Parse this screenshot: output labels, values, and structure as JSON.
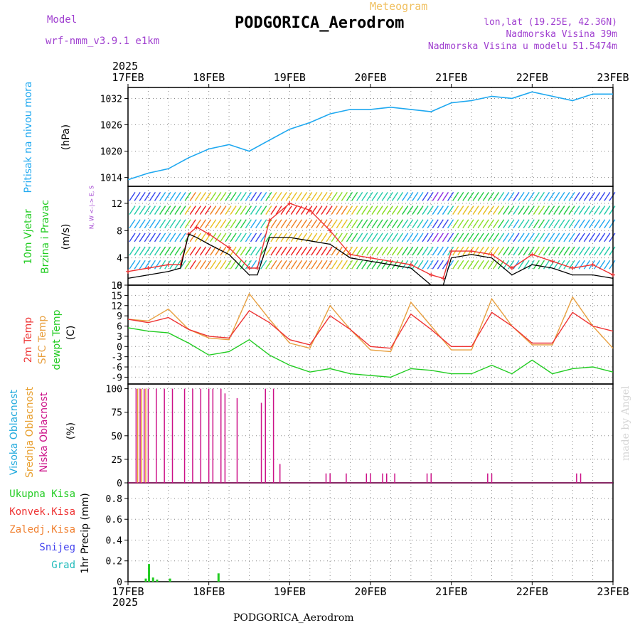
{
  "header": {
    "meteogram_label": "Meteogram",
    "title": "PODGORICA_Aerodrom",
    "model_label": "Model",
    "model_name": "wrf-nmm_v3.9.1 e1km",
    "coords": "lon,lat (19.25E, 42.36N)",
    "altitude": "Nadmorska Visina 39m",
    "model_altitude": "Nadmorska Visina u modelu 51.5474m",
    "year": "2025",
    "footer_station": "PODGORICA_Aerodrom",
    "watermark": "made by Angel"
  },
  "time_axis": {
    "dates": [
      "17FEB",
      "18FEB",
      "19FEB",
      "20FEB",
      "21FEB",
      "22FEB",
      "23FEB"
    ]
  },
  "colors": {
    "pressure": "#1ea8f0",
    "t2m": "#ee3333",
    "tsfc": "#e8a040",
    "dewpoint": "#22cc22",
    "wind_speed": "#000000",
    "gust": "#ee3333",
    "cloud_high": "#22aadd",
    "cloud_mid": "#e8a030",
    "cloud_low": "#cc1188",
    "precip_total": "#22cc22",
    "grid": "#888888",
    "label_purple": "#a040d0",
    "meteogram_label": "#f0c060"
  },
  "chart_data": [
    {
      "type": "line",
      "panel": "pressure",
      "ylabel_side": "Pritisak na nivou mora",
      "ylabel": "(hPa)",
      "yticks": [
        1014,
        1020,
        1026,
        1032
      ],
      "ylim": [
        1012,
        1034.5
      ],
      "x_days": [
        0,
        0.25,
        0.5,
        0.75,
        1,
        1.25,
        1.5,
        1.75,
        2,
        2.25,
        2.5,
        2.75,
        3,
        3.25,
        3.5,
        3.75,
        4,
        4.25,
        4.5,
        4.75,
        5,
        5.25,
        5.5,
        5.75,
        6
      ],
      "values": [
        1013.5,
        1015,
        1016,
        1018.5,
        1020.5,
        1021.5,
        1020,
        1022.5,
        1025,
        1026.5,
        1028.5,
        1029.5,
        1029.5,
        1030,
        1029.5,
        1029,
        1031,
        1031.5,
        1032.5,
        1032,
        1033.5,
        1032.5,
        1031.5,
        1033,
        1033
      ],
      "grid": true
    },
    {
      "type": "line",
      "panel": "wind",
      "ylabel_side": [
        "10m Vjetar",
        "Brzina i Pravac"
      ],
      "ylabel": "(m/s)",
      "compass_legend": "N, W <-|-> E, S",
      "yticks": [
        0,
        4,
        8,
        12
      ],
      "ylim": [
        0,
        14.5
      ],
      "x_days": [
        0,
        0.25,
        0.5,
        0.65,
        0.75,
        0.85,
        1,
        1.25,
        1.5,
        1.6,
        1.75,
        2,
        2.25,
        2.5,
        2.75,
        3,
        3.25,
        3.5,
        3.75,
        3.9,
        4,
        4.25,
        4.5,
        4.75,
        5,
        5.25,
        5.5,
        5.75,
        6
      ],
      "series": [
        {
          "name": "speed",
          "values": [
            1,
            1.5,
            2,
            2.5,
            7.5,
            7,
            6,
            4.5,
            1.5,
            1.5,
            7,
            7,
            6.5,
            6,
            4,
            3.5,
            3,
            2.5,
            0,
            0,
            4,
            4.5,
            4,
            1.5,
            3,
            2.5,
            1.5,
            1.5,
            1
          ]
        },
        {
          "name": "gust",
          "values": [
            2,
            2.5,
            3,
            3,
            7.5,
            8.5,
            7.5,
            5.5,
            2.5,
            2.5,
            9.5,
            12,
            11,
            8,
            4.5,
            4,
            3.5,
            3,
            1.5,
            1,
            5,
            5,
            4.5,
            2.5,
            4.5,
            3.5,
            2.5,
            3,
            1.5
          ]
        }
      ],
      "grid": true
    },
    {
      "type": "line",
      "panel": "temperature",
      "ylabel_side": [
        "2m Temp",
        "SFC Temp",
        "dewpt Temp"
      ],
      "ylabel": "(C)",
      "yticks": [
        -9,
        -6,
        -3,
        0,
        3,
        6,
        9,
        12,
        15,
        18
      ],
      "ylim": [
        -11,
        18
      ],
      "x_days": [
        0,
        0.25,
        0.5,
        0.75,
        1,
        1.25,
        1.5,
        1.75,
        2,
        2.25,
        2.5,
        2.75,
        3,
        3.25,
        3.5,
        3.75,
        4,
        4.25,
        4.5,
        4.75,
        5,
        5.25,
        5.5,
        5.75,
        6
      ],
      "series": [
        {
          "name": "2m Temp",
          "values": [
            8,
            7,
            8.5,
            5,
            3,
            2.5,
            10.5,
            7,
            2,
            0.5,
            9,
            5,
            0,
            -0.5,
            9.5,
            5,
            0,
            0,
            10,
            6,
            1,
            1,
            10,
            6,
            4.5
          ]
        },
        {
          "name": "SFC Temp",
          "values": [
            8,
            7.5,
            11,
            5,
            2.5,
            2,
            15.5,
            8,
            1,
            -0.5,
            12,
            5,
            -1,
            -1.5,
            13,
            6,
            -1,
            -1,
            14,
            6,
            0.5,
            0.5,
            14.5,
            6,
            -0.5
          ]
        },
        {
          "name": "dewpt Temp",
          "values": [
            5.5,
            4.5,
            4,
            1,
            -2.5,
            -1.5,
            2,
            -2.5,
            -5.5,
            -7.5,
            -6.5,
            -8,
            -8.5,
            -9,
            -6.5,
            -7,
            -8,
            -8,
            -5.5,
            -8,
            -4,
            -8,
            -6.5,
            -6,
            -7.5
          ]
        }
      ],
      "grid": true
    },
    {
      "type": "bar",
      "panel": "cloud",
      "ylabel_side": [
        "Visoka Oblacnost",
        "Srednja Oblacnost",
        "Niska Oblacnost"
      ],
      "ylabel": "(%)",
      "yticks": [
        0,
        25,
        50,
        75,
        100
      ],
      "ylim": [
        0,
        105
      ],
      "series": [
        {
          "name": "Niska Oblacnost",
          "x_days": [
            0.1,
            0.15,
            0.2,
            0.25,
            0.35,
            0.45,
            0.55,
            0.7,
            0.8,
            0.9,
            1.0,
            1.05,
            1.15,
            1.2,
            1.35,
            1.65,
            1.7,
            1.8,
            1.88,
            2.45,
            2.5,
            2.7,
            2.95,
            3.0,
            3.15,
            3.2,
            3.3,
            3.7,
            3.75,
            4.45,
            4.5,
            5.55,
            5.6
          ],
          "values": [
            100,
            100,
            100,
            100,
            100,
            100,
            100,
            100,
            100,
            100,
            100,
            100,
            100,
            95,
            90,
            85,
            100,
            100,
            20,
            10,
            10,
            10,
            10,
            10,
            10,
            10,
            10,
            10,
            10,
            10,
            10,
            10,
            10
          ]
        },
        {
          "name": "Srednja Oblacnost",
          "x_days": [
            0.12,
            0.17,
            0.22
          ],
          "values": [
            100,
            100,
            100
          ]
        }
      ],
      "grid": true
    },
    {
      "type": "bar",
      "panel": "precip",
      "ylabel_side": [
        "Ukupna Kisa",
        "Konvek.Kisa",
        "Zaledj.Kisa",
        "Snijeg",
        "Grad"
      ],
      "ylabel": "1hr Precip (mm)",
      "yticks": [
        0,
        0.2,
        0.4,
        0.6,
        0.8
      ],
      "ylim": [
        0,
        0.95
      ],
      "series": [
        {
          "name": "Ukupna Kisa",
          "x_days": [
            0.22,
            0.26,
            0.31,
            0.36,
            0.52,
            1.12
          ],
          "values": [
            0.03,
            0.17,
            0.04,
            0.02,
            0.03,
            0.08
          ]
        }
      ],
      "grid": true
    }
  ]
}
